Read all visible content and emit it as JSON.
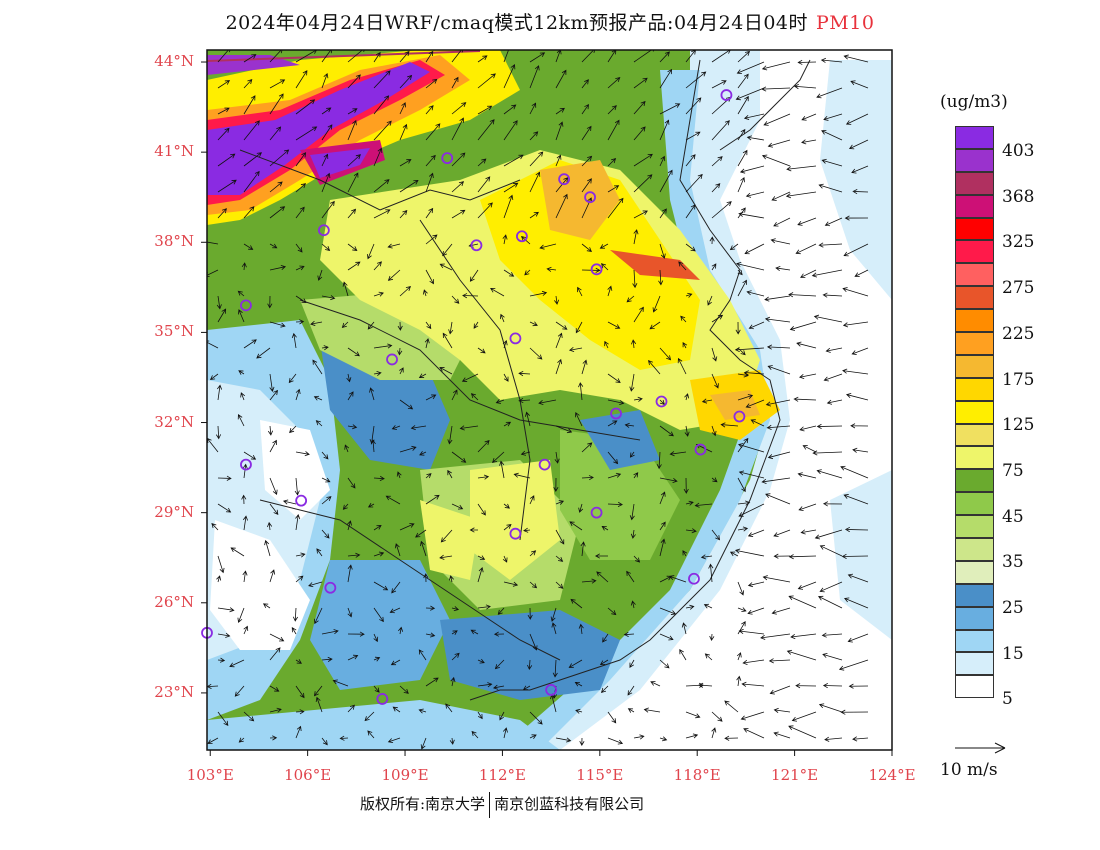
{
  "title": {
    "main": "2024年04月24日WRF/cmaq模式12km预报产品:04月24日04时",
    "species": "PM10"
  },
  "axes": {
    "lat_labels": [
      "44°N",
      "41°N",
      "38°N",
      "35°N",
      "32°N",
      "29°N",
      "26°N",
      "23°N"
    ],
    "lat_values": [
      44,
      41,
      38,
      35,
      32,
      29,
      26,
      23
    ],
    "lon_labels": [
      "103°E",
      "106°E",
      "109°E",
      "112°E",
      "115°E",
      "118°E",
      "121°E",
      "124°E"
    ],
    "lon_values": [
      103,
      106,
      109,
      112,
      115,
      118,
      121,
      124
    ]
  },
  "legend": {
    "unit": "(ug/m3)",
    "labels": [
      "403",
      "368",
      "325",
      "275",
      "225",
      "175",
      "125",
      "75",
      "45",
      "35",
      "25",
      "15",
      "5"
    ],
    "colors": [
      "#8a2be2",
      "#9a32cd",
      "#b03060",
      "#cd1076",
      "#ff0000",
      "#ff1a4a",
      "#ff6060",
      "#e8552a",
      "#ff8c00",
      "#ffa020",
      "#f5b830",
      "#ffd700",
      "#ffee00",
      "#f0e060",
      "#eef56a",
      "#6aaa2e",
      "#8fc94a",
      "#b5dc6a",
      "#cde68a",
      "#e0eebb",
      "#4a8fc8",
      "#68aee0",
      "#9fd6f4",
      "#d6eefa",
      "#ffffff"
    ]
  },
  "wind": {
    "reference": "10 m/s"
  },
  "footer": {
    "left": "版权所有:南京大学",
    "right": "南京创蓝科技有限公司"
  },
  "stations": [
    {
      "lon": 118.9,
      "lat": 42.9
    },
    {
      "lon": 110.3,
      "lat": 40.8
    },
    {
      "lon": 113.9,
      "lat": 40.1
    },
    {
      "lon": 114.7,
      "lat": 39.5
    },
    {
      "lon": 106.5,
      "lat": 38.4
    },
    {
      "lon": 111.2,
      "lat": 37.9
    },
    {
      "lon": 112.6,
      "lat": 38.2
    },
    {
      "lon": 114.9,
      "lat": 37.1
    },
    {
      "lon": 104.1,
      "lat": 35.9
    },
    {
      "lon": 112.4,
      "lat": 34.8
    },
    {
      "lon": 108.6,
      "lat": 34.1
    },
    {
      "lon": 115.5,
      "lat": 32.3
    },
    {
      "lon": 116.9,
      "lat": 32.7
    },
    {
      "lon": 119.3,
      "lat": 32.2
    },
    {
      "lon": 118.1,
      "lat": 31.1
    },
    {
      "lon": 104.1,
      "lat": 30.6
    },
    {
      "lon": 113.3,
      "lat": 30.6
    },
    {
      "lon": 105.8,
      "lat": 29.4
    },
    {
      "lon": 114.9,
      "lat": 29.0
    },
    {
      "lon": 112.4,
      "lat": 28.3
    },
    {
      "lon": 106.7,
      "lat": 26.5
    },
    {
      "lon": 117.9,
      "lat": 26.8
    },
    {
      "lon": 102.9,
      "lat": 25.0
    },
    {
      "lon": 108.3,
      "lat": 22.8
    },
    {
      "lon": 113.5,
      "lat": 23.1
    }
  ]
}
